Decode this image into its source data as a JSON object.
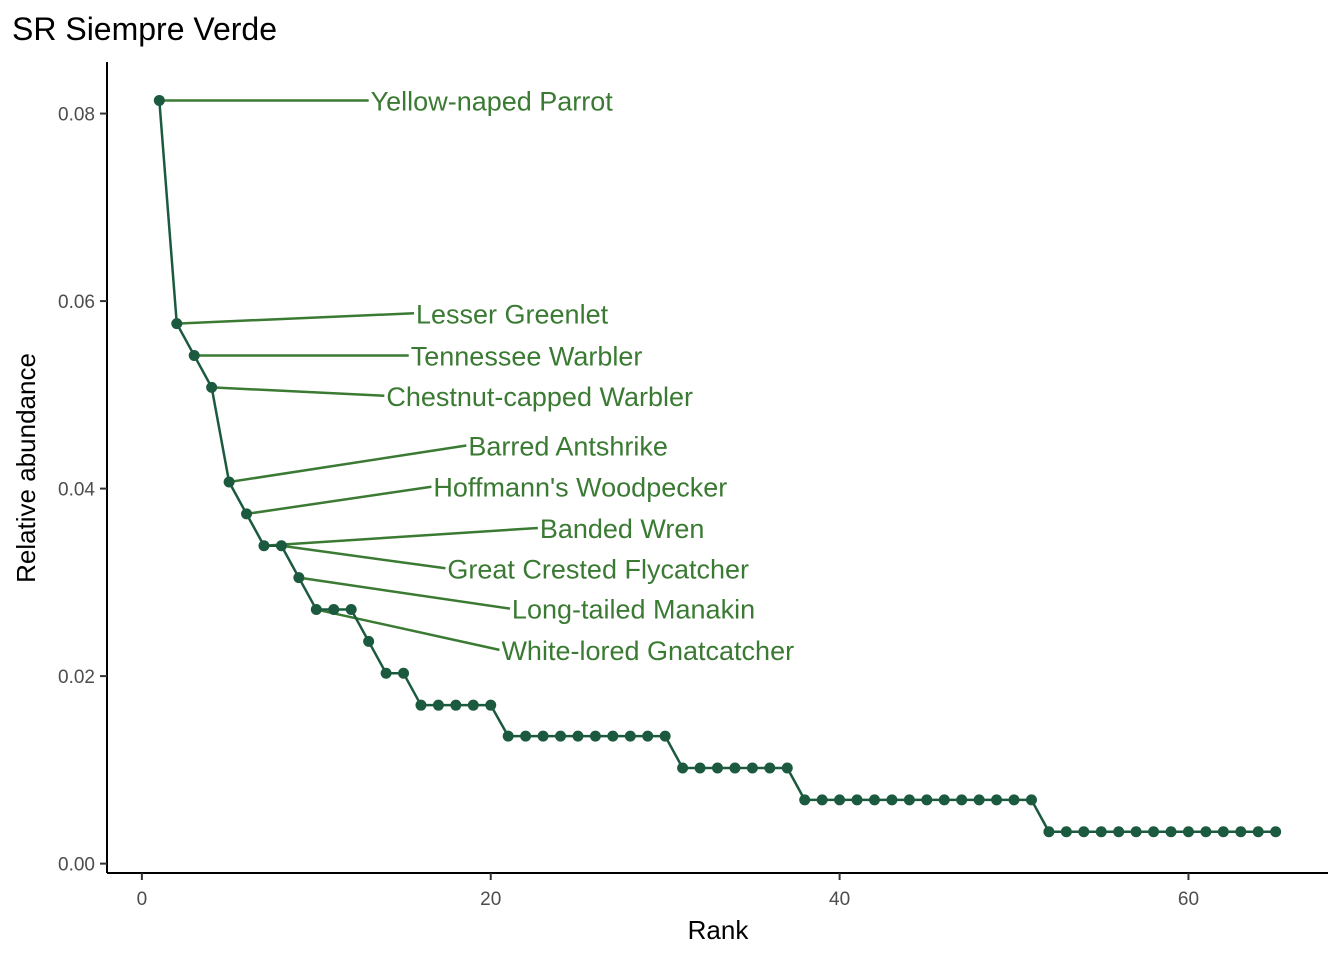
{
  "chart_data": {
    "type": "line",
    "title": "SR Siempre Verde",
    "xlabel": "Rank",
    "ylabel": "Relative abundance",
    "xlim": [
      -2,
      68
    ],
    "ylim": [
      -0.001,
      0.0855
    ],
    "x_ticks": [
      0,
      20,
      40,
      60
    ],
    "y_ticks": [
      0.0,
      0.02,
      0.04,
      0.06,
      0.08
    ],
    "x_tick_labels": [
      "0",
      "20",
      "40",
      "60"
    ],
    "y_tick_labels": [
      "0.00",
      "0.02",
      "0.04",
      "0.06",
      "0.08"
    ],
    "grid": false,
    "legend": "none",
    "colors": {
      "series": "#1b5a3f",
      "annotation": "#3a7a33"
    },
    "series": [
      {
        "x": [
          1,
          2,
          3,
          4,
          5,
          6,
          7,
          8,
          9,
          10,
          11,
          12,
          13,
          14,
          15,
          16,
          17,
          18,
          19,
          20,
          21,
          22,
          23,
          24,
          25,
          26,
          27,
          28,
          29,
          30,
          31,
          32,
          33,
          34,
          35,
          36,
          37,
          38,
          39,
          40,
          41,
          42,
          43,
          44,
          45,
          46,
          47,
          48,
          49,
          50,
          51,
          52,
          53,
          54,
          55,
          56,
          57,
          58,
          59,
          60,
          61,
          62,
          63,
          64,
          65
        ],
        "values": [
          0.0814,
          0.0576,
          0.0542,
          0.0508,
          0.0407,
          0.0373,
          0.0339,
          0.0339,
          0.0305,
          0.0271,
          0.0271,
          0.0271,
          0.0237,
          0.0203,
          0.0203,
          0.0169,
          0.0169,
          0.0169,
          0.0169,
          0.0169,
          0.0136,
          0.0136,
          0.0136,
          0.0136,
          0.0136,
          0.0136,
          0.0136,
          0.0136,
          0.0136,
          0.0136,
          0.0102,
          0.0102,
          0.0102,
          0.0102,
          0.0102,
          0.0102,
          0.0102,
          0.0068,
          0.0068,
          0.0068,
          0.0068,
          0.0068,
          0.0068,
          0.0068,
          0.0068,
          0.0068,
          0.0068,
          0.0068,
          0.0068,
          0.0068,
          0.0068,
          0.0034,
          0.0034,
          0.0034,
          0.0034,
          0.0034,
          0.0034,
          0.0034,
          0.0034,
          0.0034,
          0.0034,
          0.0034,
          0.0034,
          0.0034,
          0.0034
        ]
      }
    ],
    "annotations": [
      {
        "text": "Yellow-naped Parrot",
        "x": 1,
        "y": 0.0814,
        "label_x": 13,
        "label_y": 0.0814
      },
      {
        "text": "Lesser Greenlet",
        "x": 2,
        "y": 0.0576,
        "label_x": 15.6,
        "label_y": 0.0587
      },
      {
        "text": "Tennessee Warbler",
        "x": 3,
        "y": 0.0542,
        "label_x": 15.3,
        "label_y": 0.0542
      },
      {
        "text": "Chestnut-capped Warbler",
        "x": 4,
        "y": 0.0508,
        "label_x": 13.9,
        "label_y": 0.0499
      },
      {
        "text": "Barred Antshrike",
        "x": 5,
        "y": 0.0407,
        "label_x": 18.6,
        "label_y": 0.0446
      },
      {
        "text": "Hoffmann's Woodpecker",
        "x": 6,
        "y": 0.0373,
        "label_x": 16.6,
        "label_y": 0.0402
      },
      {
        "text": "Banded Wren",
        "x": 7,
        "y": 0.0339,
        "label_x": 22.7,
        "label_y": 0.0358
      },
      {
        "text": "Great Crested Flycatcher",
        "x": 8,
        "y": 0.0339,
        "label_x": 17.4,
        "label_y": 0.0315
      },
      {
        "text": "Long-tailed Manakin",
        "x": 9,
        "y": 0.0305,
        "label_x": 21.1,
        "label_y": 0.0272
      },
      {
        "text": "White-lored Gnatcatcher",
        "x": 10,
        "y": 0.0271,
        "label_x": 20.5,
        "label_y": 0.0228
      }
    ]
  }
}
